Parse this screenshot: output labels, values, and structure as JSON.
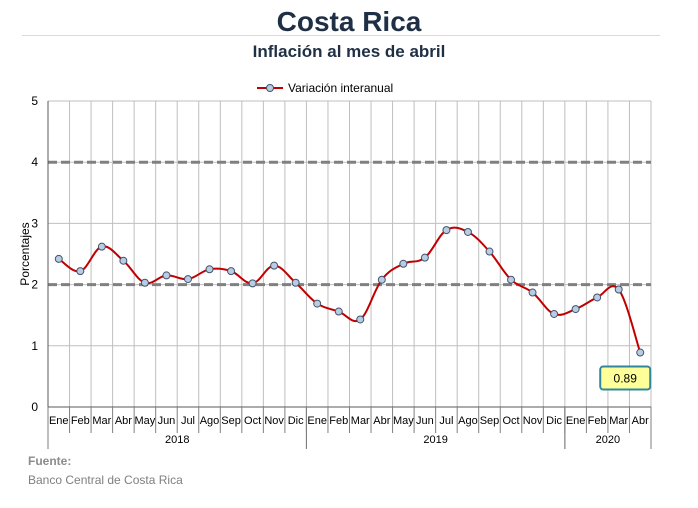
{
  "header": {
    "title": "Costa Rica",
    "subtitle": "Inflación al mes de abril"
  },
  "source": {
    "label": "Fuente:",
    "text": "Banco Central de Costa Rica"
  },
  "colors": {
    "line": "#c00000",
    "marker_fill": "#b8cce4",
    "marker_stroke": "#44546a",
    "reference": "#808080",
    "grid": "#bfbfbf",
    "callout_fill": "#ffff99",
    "callout_stroke": "#31859c"
  },
  "chart_data": {
    "type": "line",
    "title": "Inflación al mes de abril",
    "ylabel": "Porcentajes",
    "ylim": [
      0,
      5
    ],
    "yticks": [
      "0",
      "1",
      "2",
      "3",
      "4",
      "5"
    ],
    "grid": true,
    "legend": {
      "placement": "top-center",
      "label": "Variación interanual"
    },
    "reference_lines": [
      2,
      4
    ],
    "categories": [
      "Ene",
      "Feb",
      "Mar",
      "Abr",
      "May",
      "Jun",
      "Jul",
      "Ago",
      "Sep",
      "Oct",
      "Nov",
      "Dic",
      "Ene",
      "Feb",
      "Mar",
      "Abr",
      "May",
      "Jun",
      "Jul",
      "Ago",
      "Sep",
      "Oct",
      "Nov",
      "Dic",
      "Ene",
      "Feb",
      "Mar",
      "Abr"
    ],
    "years": [
      {
        "label": "2018",
        "count": 12
      },
      {
        "label": "2019",
        "count": 12
      },
      {
        "label": "2020",
        "count": 4
      }
    ],
    "series": [
      {
        "name": "Variación interanual",
        "values": [
          2.42,
          2.22,
          2.62,
          2.39,
          2.03,
          2.15,
          2.09,
          2.25,
          2.22,
          2.02,
          2.31,
          2.03,
          1.69,
          1.56,
          1.43,
          2.08,
          2.34,
          2.44,
          2.89,
          2.86,
          2.54,
          2.08,
          1.87,
          1.52,
          1.6,
          1.79,
          1.92,
          0.89
        ]
      }
    ],
    "annotation": {
      "index": 27,
      "text": "0.89"
    }
  }
}
